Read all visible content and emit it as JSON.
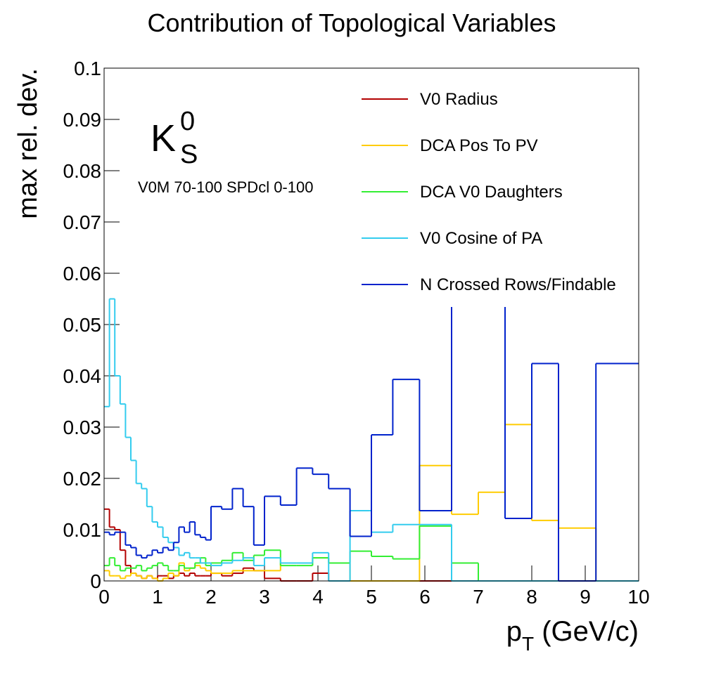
{
  "chart_data": {
    "type": "histogram-step",
    "title": "Contribution of Topological Variables",
    "ylabel": "max rel. dev.",
    "xlabel_parts": [
      "p",
      "T",
      " (GeV/c)"
    ],
    "particle_parts": [
      "K",
      "S",
      "0"
    ],
    "annotation": "V0M 70-100 SPDcl 0-100",
    "bins": [
      0,
      0.1,
      0.2,
      0.3,
      0.4,
      0.5,
      0.6,
      0.7,
      0.8,
      0.9,
      1.0,
      1.1,
      1.2,
      1.3,
      1.4,
      1.5,
      1.6,
      1.7,
      1.8,
      1.9,
      2.0,
      2.2,
      2.4,
      2.6,
      2.8,
      3.0,
      3.3,
      3.6,
      3.9,
      4.2,
      4.6,
      5.0,
      5.4,
      5.9,
      6.5,
      7.0,
      7.5,
      8.0,
      8.5,
      9.2,
      10
    ],
    "xlim": [
      0,
      10
    ],
    "xticks": [
      0,
      1,
      2,
      3,
      4,
      5,
      6,
      7,
      8,
      9,
      10
    ],
    "ylim": [
      0,
      0.1
    ],
    "yticks": [
      0,
      0.01,
      0.02,
      0.03,
      0.04,
      0.05,
      0.06,
      0.07,
      0.08,
      0.09,
      0.1
    ],
    "legend": "upper-right",
    "series": [
      {
        "name": "V0 Radius",
        "color": "#b30000",
        "values": [
          0.014,
          0.0105,
          0.01,
          0.006,
          0.003,
          0.0015,
          0.001,
          0.0005,
          0.001,
          0.0005,
          0.001,
          0.001,
          0.0005,
          0.001,
          0.0015,
          0.001,
          0.0015,
          0.001,
          0.001,
          0.001,
          0.0015,
          0.001,
          0.0015,
          0.0025,
          0.002,
          0.0005,
          0,
          0,
          0.0015,
          0,
          0,
          0,
          0,
          0,
          0,
          0,
          0,
          0,
          0,
          0
        ]
      },
      {
        "name": "DCA Pos To PV",
        "color": "#ffcc00",
        "values": [
          0.002,
          0.001,
          0.001,
          0.0005,
          0.001,
          0.0015,
          0.001,
          0.0005,
          0.001,
          0.0005,
          0,
          0.0005,
          0.0015,
          0.001,
          0.0035,
          0.002,
          0.0025,
          0.003,
          0.0025,
          0.002,
          0.0015,
          0.0015,
          0.002,
          0.002,
          0.002,
          0.002,
          0.0035,
          0.0035,
          0.0045,
          0.0035,
          0,
          0,
          0,
          0.0225,
          0.013,
          0.0173,
          0.0305,
          0.0118,
          0.0103,
          0
        ]
      },
      {
        "name": "DCA V0 Daughters",
        "color": "#33ee33",
        "values": [
          0.003,
          0.0045,
          0.003,
          0.002,
          0.0025,
          0.0025,
          0.003,
          0.002,
          0.0025,
          0.003,
          0.0035,
          0.003,
          0.002,
          0.002,
          0.003,
          0.0025,
          0.0025,
          0.0035,
          0.0045,
          0.003,
          0.0035,
          0.004,
          0.0055,
          0.004,
          0.005,
          0.006,
          0.003,
          0.003,
          0.0045,
          0.0035,
          0.0058,
          0.0048,
          0.0043,
          0.0107,
          0.0035,
          0,
          0,
          0,
          0,
          0
        ]
      },
      {
        "name": "V0 Cosine of PA",
        "color": "#33ccee",
        "values": [
          0.034,
          0.055,
          0.04,
          0.0345,
          0.028,
          0.0235,
          0.019,
          0.018,
          0.0145,
          0.0115,
          0.0105,
          0.0085,
          0.0075,
          0.0065,
          0.005,
          0.0055,
          0.0045,
          0.0045,
          0.0035,
          0.0035,
          0.003,
          0.0035,
          0.004,
          0.0045,
          0.003,
          0.0045,
          0.0035,
          0.0035,
          0.0055,
          0,
          0.0137,
          0.0095,
          0.011,
          0.011,
          0,
          0,
          0,
          0,
          0,
          0
        ]
      },
      {
        "name": "N Crossed Rows/Findable",
        "color": "#0022cc",
        "values": [
          0.0095,
          0.009,
          0.0095,
          0.0095,
          0.007,
          0.0065,
          0.005,
          0.0045,
          0.005,
          0.006,
          0.0055,
          0.0065,
          0.006,
          0.0075,
          0.0105,
          0.0095,
          0.0115,
          0.009,
          0.0085,
          0.008,
          0.0145,
          0.014,
          0.018,
          0.0145,
          0.007,
          0.0165,
          0.0148,
          0.022,
          0.0208,
          0.018,
          0.0087,
          0.0285,
          0.0393,
          0.0137,
          0.065,
          0.065,
          0.0122,
          0.0424,
          0,
          0.0424
        ]
      }
    ]
  }
}
